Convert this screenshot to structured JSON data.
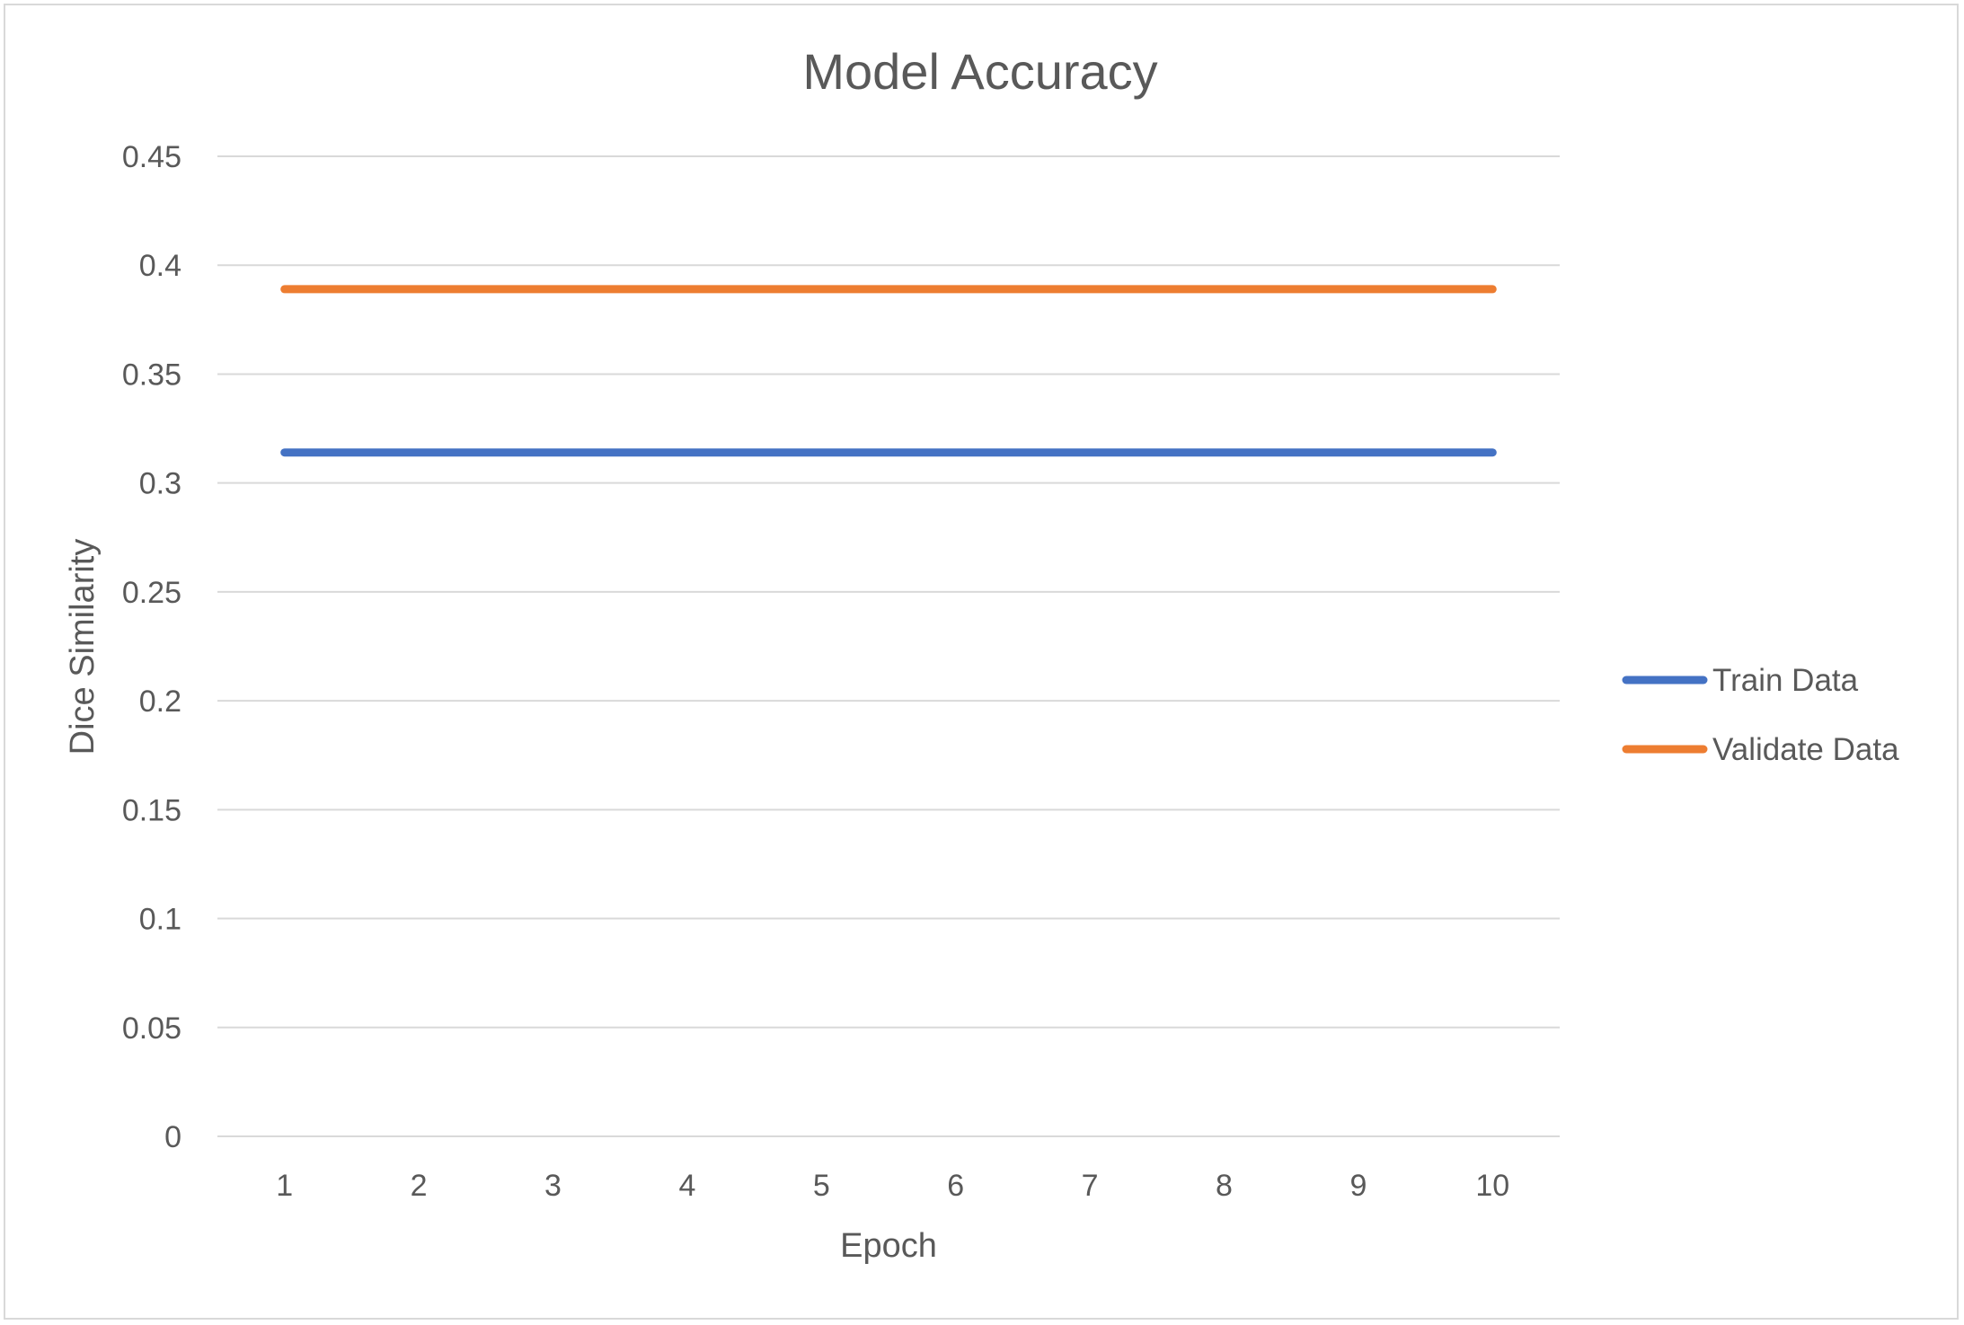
{
  "chart_data": {
    "type": "line",
    "title": "Model Accuracy",
    "xlabel": "Epoch",
    "ylabel": "Dice Similarity",
    "x": [
      1,
      2,
      3,
      4,
      5,
      6,
      7,
      8,
      9,
      10
    ],
    "categories": [
      "1",
      "2",
      "3",
      "4",
      "5",
      "6",
      "7",
      "8",
      "9",
      "10"
    ],
    "ylim": [
      0,
      0.45
    ],
    "yticks": [
      0,
      0.05,
      0.1,
      0.15,
      0.2,
      0.25,
      0.3,
      0.35,
      0.4,
      0.45
    ],
    "ytick_labels": [
      "0",
      "0.05",
      "0.1",
      "0.15",
      "0.2",
      "0.25",
      "0.3",
      "0.35",
      "0.4",
      "0.45"
    ],
    "grid": true,
    "legend_position": "right",
    "series": [
      {
        "name": "Train Data",
        "color": "#4472C4",
        "values": [
          0.314,
          0.314,
          0.314,
          0.314,
          0.314,
          0.314,
          0.314,
          0.314,
          0.314,
          0.314
        ]
      },
      {
        "name": "Validate Data",
        "color": "#ED7D31",
        "values": [
          0.389,
          0.389,
          0.389,
          0.389,
          0.389,
          0.389,
          0.389,
          0.389,
          0.389,
          0.389
        ]
      }
    ]
  }
}
